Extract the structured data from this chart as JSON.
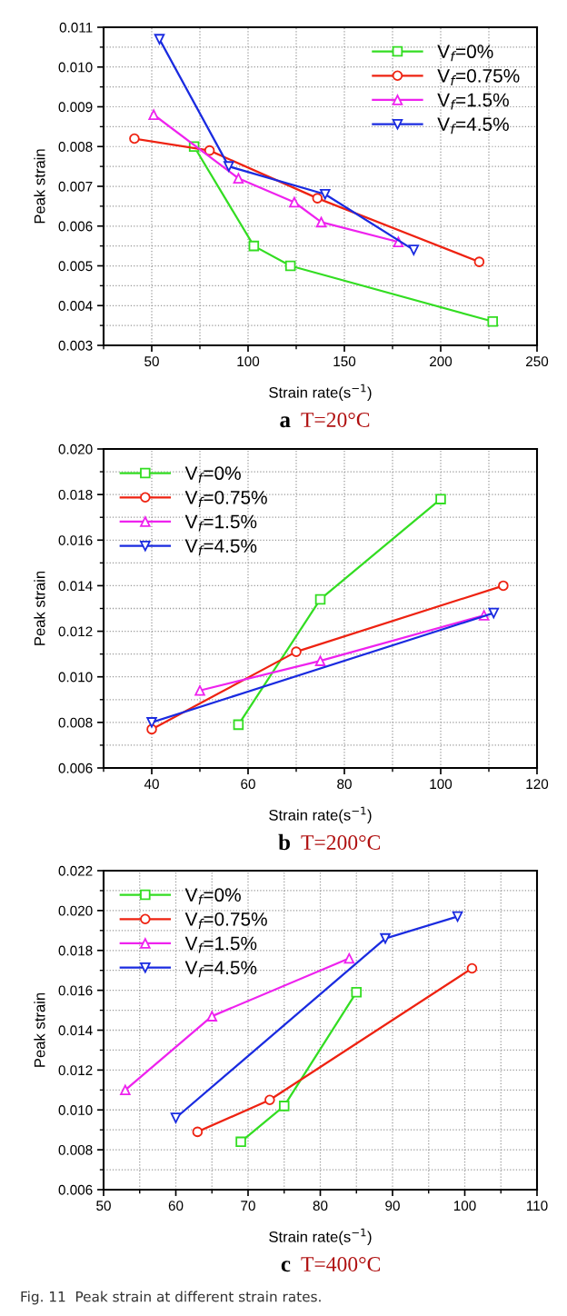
{
  "chart_data": [
    {
      "type": "line",
      "title": "a",
      "subtitle": "T=20°C",
      "xlabel": "Strain rate(s$^{−1}$)",
      "ylabel": "Peak strain",
      "xlim": [
        25,
        250
      ],
      "xticks": [
        50,
        100,
        150,
        200,
        250
      ],
      "ylim": [
        0.003,
        0.011
      ],
      "yticks": [
        {
          "value": 0.003,
          "label": "0.003"
        },
        {
          "value": 0.004,
          "label": "0.004"
        },
        {
          "value": 0.005,
          "label": "0.005"
        },
        {
          "value": 0.006,
          "label": "0.006"
        },
        {
          "value": 0.007,
          "label": "0.007"
        },
        {
          "value": 0.008,
          "label": "0.008"
        },
        {
          "value": 0.009,
          "label": "0.009"
        },
        {
          "value": 0.01,
          "label": "0.010"
        },
        {
          "value": 0.011,
          "label": "0.011"
        }
      ],
      "grid": true,
      "legend": "top right",
      "line_style": "solid",
      "series": [
        {
          "name": "V$_{f}$=0%",
          "color": "#33dd22",
          "marker": "square",
          "x": [
            72,
            103,
            122,
            227
          ],
          "values": [
            0.008,
            0.0055,
            0.005,
            0.0036
          ]
        },
        {
          "name": "V$_{f}$=0.75%",
          "color": "#ee2211",
          "marker": "circle",
          "x": [
            41,
            80,
            136,
            220
          ],
          "values": [
            0.0082,
            0.0079,
            0.0067,
            0.0051
          ]
        },
        {
          "name": "V$_{f}$=1.5%",
          "color": "#ee22ee",
          "marker": "triangle",
          "x": [
            51,
            95,
            124,
            138,
            178
          ],
          "values": [
            0.0088,
            0.0072,
            0.0066,
            0.0061,
            0.0056
          ]
        },
        {
          "name": "V$_{f}$=4.5%",
          "color": "#1a2be0",
          "marker": "triangle_down",
          "x": [
            54,
            90,
            140,
            186
          ],
          "values": [
            0.0107,
            0.0075,
            0.0068,
            0.0054
          ]
        }
      ]
    },
    {
      "type": "line",
      "title": "b",
      "subtitle": "T=200°C",
      "xlabel": "Strain rate(s$^{−1}$)",
      "ylabel": "Peak strain",
      "xlim": [
        30,
        120
      ],
      "xticks": [
        40,
        60,
        80,
        100,
        120
      ],
      "ylim": [
        0.006,
        0.02
      ],
      "yticks": [
        {
          "value": 0.006,
          "label": "0.006"
        },
        {
          "value": 0.008,
          "label": "0.008"
        },
        {
          "value": 0.01,
          "label": "0.010"
        },
        {
          "value": 0.012,
          "label": "0.012"
        },
        {
          "value": 0.014,
          "label": "0.014"
        },
        {
          "value": 0.016,
          "label": "0.016"
        },
        {
          "value": 0.018,
          "label": "0.018"
        },
        {
          "value": 0.02,
          "label": "0.020"
        }
      ],
      "grid": true,
      "legend": "top left",
      "line_style": "solid",
      "series": [
        {
          "name": "V$_{f}$=0%",
          "color": "#33dd22",
          "marker": "square",
          "x": [
            58,
            75,
            100
          ],
          "values": [
            0.0079,
            0.0134,
            0.0178
          ]
        },
        {
          "name": "V$_{f}$=0.75%",
          "color": "#ee2211",
          "marker": "circle",
          "x": [
            40,
            70,
            113
          ],
          "values": [
            0.0077,
            0.0111,
            0.014
          ]
        },
        {
          "name": "V$_{f}$=1.5%",
          "color": "#ee22ee",
          "marker": "triangle",
          "x": [
            50,
            75,
            109
          ],
          "values": [
            0.0094,
            0.0107,
            0.0127
          ]
        },
        {
          "name": "V$_{f}$=4.5%",
          "color": "#1a2be0",
          "marker": "triangle_down",
          "x": [
            40,
            111
          ],
          "values": [
            0.008,
            0.0128
          ]
        }
      ]
    },
    {
      "type": "line",
      "title": "c",
      "subtitle": "T=400°C",
      "xlabel": "Strain rate(s$^{−1}$)",
      "ylabel": "Peak strain",
      "xlim": [
        50,
        110
      ],
      "xticks": [
        50,
        60,
        70,
        80,
        90,
        100,
        110
      ],
      "ylim": [
        0.006,
        0.022
      ],
      "yticks": [
        {
          "value": 0.006,
          "label": "0.006"
        },
        {
          "value": 0.008,
          "label": "0.008"
        },
        {
          "value": 0.01,
          "label": "0.010"
        },
        {
          "value": 0.012,
          "label": "0.012"
        },
        {
          "value": 0.014,
          "label": "0.014"
        },
        {
          "value": 0.016,
          "label": "0.016"
        },
        {
          "value": 0.018,
          "label": "0.018"
        },
        {
          "value": 0.02,
          "label": "0.020"
        },
        {
          "value": 0.022,
          "label": "0.022"
        }
      ],
      "grid": true,
      "legend": "top left",
      "line_style": "solid",
      "annotations": [
        "Fig. 11  Peak strain at different strain rates."
      ],
      "series": [
        {
          "name": "V$_{f}$=0%",
          "color": "#33dd22",
          "marker": "square",
          "x": [
            69,
            75,
            85
          ],
          "values": [
            0.0084,
            0.0102,
            0.0159
          ]
        },
        {
          "name": "V$_{f}$=0.75%",
          "color": "#ee2211",
          "marker": "circle",
          "x": [
            63,
            73,
            101
          ],
          "values": [
            0.0089,
            0.0105,
            0.0171
          ]
        },
        {
          "name": "V$_{f}$=1.5%",
          "color": "#ee22ee",
          "marker": "triangle",
          "x": [
            53,
            65,
            84
          ],
          "values": [
            0.011,
            0.0147,
            0.0176
          ]
        },
        {
          "name": "V$_{f}$=4.5%",
          "color": "#1a2be0",
          "marker": "triangle_down",
          "x": [
            60,
            89,
            99
          ],
          "values": [
            0.0096,
            0.0186,
            0.0197
          ]
        }
      ]
    }
  ]
}
